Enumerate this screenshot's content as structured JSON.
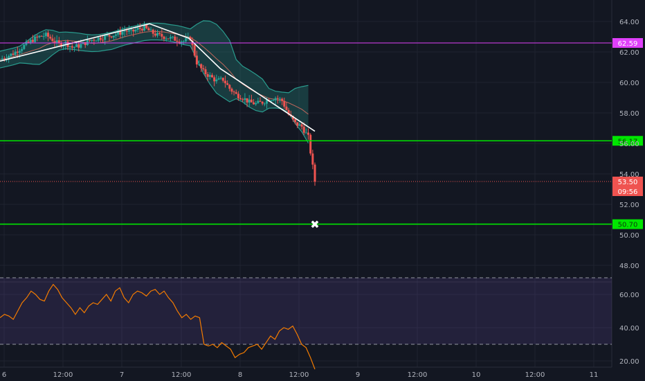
{
  "chart_data": [
    {
      "type": "candlestick",
      "title": "",
      "xlabel": "",
      "ylabel": "",
      "ylim": [
        46.5,
        65.5
      ],
      "y_ticks": [
        "48.00",
        "50.00",
        "52.00",
        "54.00",
        "56.00",
        "58.00",
        "60.00",
        "62.00",
        "64.00"
      ],
      "x_ticks": [
        "6",
        "12:00",
        "7",
        "12:00",
        "8",
        "12:00",
        "9",
        "12:00",
        "10",
        "12:00",
        "11"
      ],
      "grid": true,
      "price_path": [
        61.5,
        61.7,
        61.9,
        62.2,
        62.5,
        62.8,
        63.0,
        63.1,
        62.8,
        62.5,
        62.6,
        62.3,
        62.4,
        62.6,
        62.8,
        62.9,
        63.0,
        63.1,
        63.2,
        63.4,
        63.3,
        63.5,
        63.6,
        63.3,
        63.1,
        63.0,
        62.9,
        62.8,
        62.7,
        62.9,
        61.3,
        60.7,
        60.4,
        60.1,
        60.2,
        59.6,
        59.2,
        59.0,
        58.7,
        58.6,
        58.7,
        58.9,
        59.0,
        58.8,
        57.9,
        57.3,
        57.1,
        56.4,
        53.5
      ],
      "candle_colors": {
        "up": "#26a69a",
        "down": "#ef5350"
      },
      "bollinger": {
        "basis_color": "#c2675c",
        "band_color": "#2a9d8f"
      },
      "pattern_line": [
        {
          "t": 0.0,
          "v": 61.4
        },
        {
          "t": 0.475,
          "v": 63.85
        },
        {
          "t": 0.6,
          "v": 62.9
        },
        {
          "t": 0.7,
          "v": 60.9
        },
        {
          "t": 1.0,
          "v": 56.8
        }
      ],
      "horizontal_levels": [
        {
          "name": "resistance-level",
          "value": 62.59,
          "label": "62.59",
          "color": "#e040fb"
        },
        {
          "name": "support-level-upper",
          "value": 56.17,
          "label": "56.17",
          "color": "#00e600"
        },
        {
          "name": "support-level-lower",
          "value": 50.7,
          "label": "50.70",
          "color": "#00e600"
        }
      ],
      "last_price": {
        "value": 53.5,
        "label": "53.50",
        "countdown": "09:56",
        "color": "#ef5350"
      },
      "target_marker": {
        "value": 50.7,
        "symbol": "✖"
      }
    },
    {
      "type": "line",
      "title": "",
      "indicator_role": "oscillator",
      "ylim": [
        12,
        74
      ],
      "y_ticks": [
        "20.00",
        "40.00",
        "60.00"
      ],
      "band": {
        "upper": 70,
        "lower": 30,
        "color": "#7e57c2"
      },
      "line_color": "#f57c00",
      "values": [
        46,
        48,
        47,
        45,
        50,
        55,
        58,
        62,
        60,
        57,
        56,
        62,
        66,
        63,
        58,
        55,
        52,
        48,
        52,
        49,
        53,
        55,
        54,
        57,
        60,
        56,
        62,
        64,
        58,
        55,
        60,
        62,
        61,
        59,
        62,
        63,
        60,
        62,
        58,
        55,
        50,
        46,
        48,
        45,
        47,
        46,
        30,
        29,
        30,
        28,
        31,
        29,
        27,
        22,
        24,
        25,
        28,
        29,
        30,
        27,
        31,
        35,
        33,
        38,
        40,
        39,
        41,
        36,
        30,
        28,
        22,
        15
      ]
    }
  ]
}
